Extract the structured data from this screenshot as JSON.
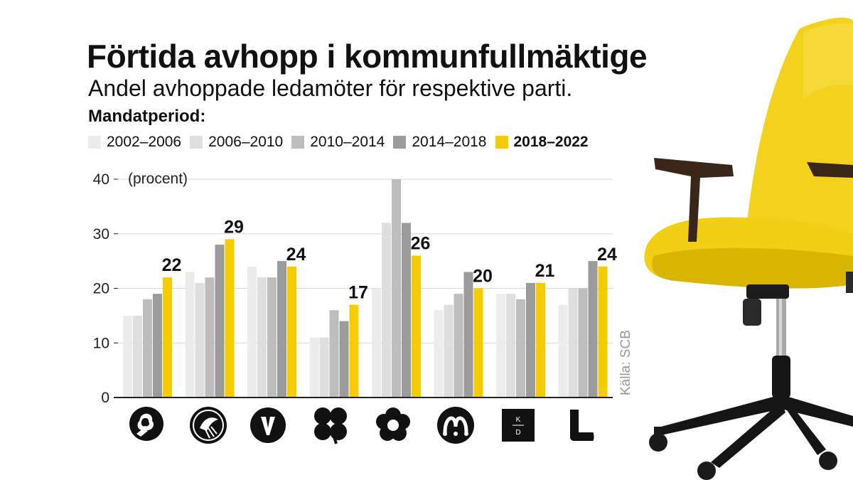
{
  "title": "Förtida avhopp i kommunfullmäktige",
  "subtitle": "Andel avhoppade ledamöter för respektive parti.",
  "legend_title": "Mandatperiod:",
  "unit_label": "(procent)",
  "source": "Källa: SCB",
  "colors": {
    "s2002": "#ececec",
    "s2006": "#dedede",
    "s2010": "#bdbdbd",
    "s2014": "#9b9b9b",
    "s2018": "#f5cc00",
    "grid": "#d6d6d6",
    "axis": "#222222",
    "chair": "#f2d21c"
  },
  "chart_data": {
    "type": "bar",
    "categories": [
      "S",
      "SD",
      "V",
      "C",
      "MP",
      "M",
      "KD",
      "L"
    ],
    "category_icons": [
      "social-democrats-rose-icon",
      "sweden-democrats-flower-icon",
      "left-party-v-icon",
      "centre-party-clover-icon",
      "green-party-flower-icon",
      "moderates-m-icon",
      "christian-democrats-kd-icon",
      "liberals-l-icon"
    ],
    "series": [
      {
        "name": "2002–2006",
        "values": [
          15,
          23,
          24,
          11,
          20,
          16,
          19,
          17
        ]
      },
      {
        "name": "2006–2010",
        "values": [
          15,
          21,
          22,
          11,
          32,
          17,
          19,
          20
        ]
      },
      {
        "name": "2010–2014",
        "values": [
          18,
          22,
          22,
          16,
          40,
          19,
          18,
          20
        ]
      },
      {
        "name": "2014–2018",
        "values": [
          19,
          28,
          25,
          14,
          32,
          23,
          21,
          25
        ]
      },
      {
        "name": "2018–2022",
        "values": [
          22,
          29,
          24,
          17,
          26,
          20,
          21,
          24
        ]
      }
    ],
    "data_labels": [
      "22",
      "29",
      "24",
      "17",
      "26",
      "20",
      "21",
      "24"
    ],
    "y_ticks": [
      "0",
      "10",
      "20",
      "30",
      "40"
    ],
    "ylim": [
      0,
      40
    ],
    "grid": true,
    "legend": "top",
    "highlight_series": "2018–2022"
  }
}
